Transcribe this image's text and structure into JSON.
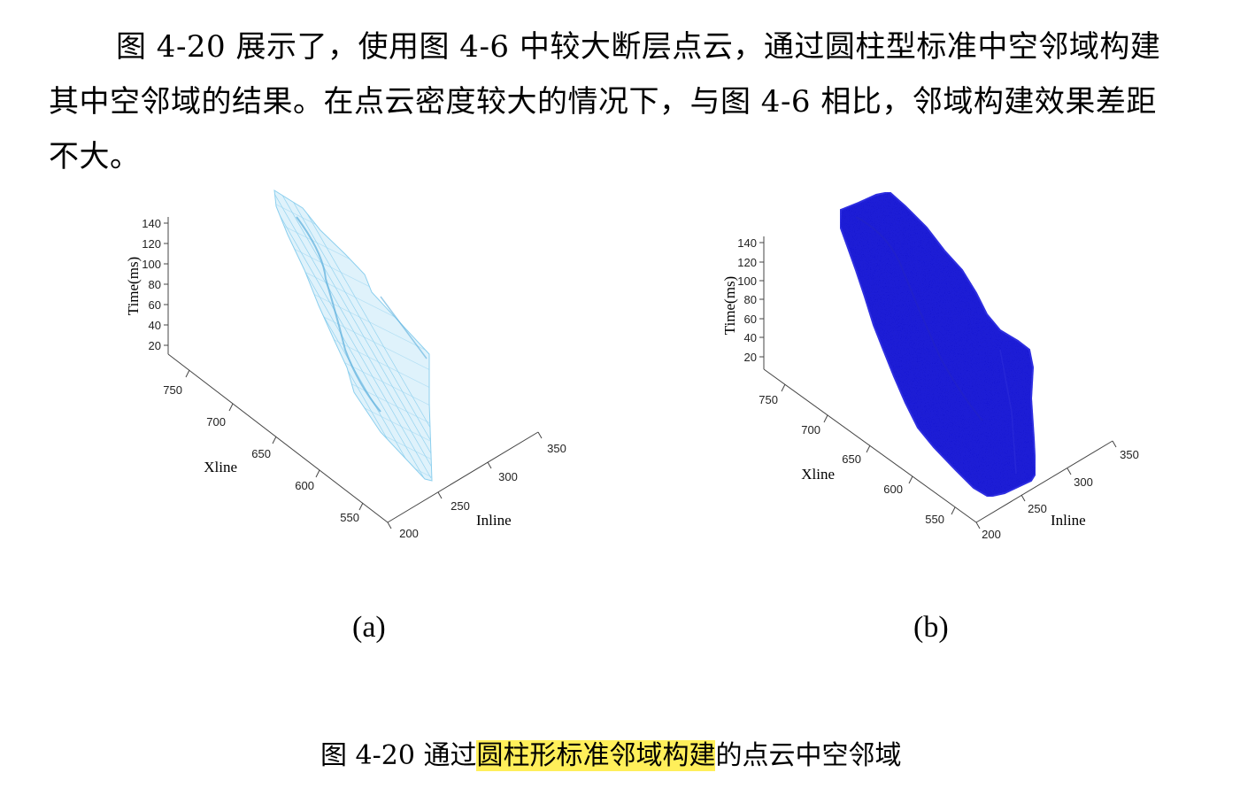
{
  "paragraph": {
    "line1": "图 4-20 展示了，使用图 4-6 中较大断层点云，通过圆柱型标准中空邻域构建",
    "line2": "其中空邻域的结果。在点云密度较大的情况下，与图 4-6 相比，邻域构建效果差距",
    "line3": "不大。"
  },
  "figures": [
    {
      "label": "(a)",
      "zlabel": "Time(ms)",
      "xlabel": "Xline",
      "ylabel": "Inline",
      "z_ticks": [
        "140",
        "120",
        "100",
        "80",
        "60",
        "40",
        "20"
      ],
      "x_ticks": [
        "750",
        "700",
        "650",
        "600",
        "550"
      ],
      "y_ticks": [
        "200",
        "250",
        "300",
        "350"
      ],
      "color": "#8ccfee"
    },
    {
      "label": "(b)",
      "zlabel": "Time(ms)",
      "xlabel": "Xline",
      "ylabel": "Inline",
      "z_ticks": [
        "140",
        "120",
        "100",
        "80",
        "60",
        "40",
        "20"
      ],
      "x_ticks": [
        "750",
        "700",
        "650",
        "600",
        "550"
      ],
      "y_ticks": [
        "200",
        "250",
        "300",
        "350"
      ],
      "color": "#1a1ae0"
    }
  ],
  "caption": {
    "prefix": "图 4-20  通过",
    "highlight": "圆柱形标准邻域构建",
    "suffix": "的点云中空邻域",
    "highlight_color": "#ffef5a"
  }
}
